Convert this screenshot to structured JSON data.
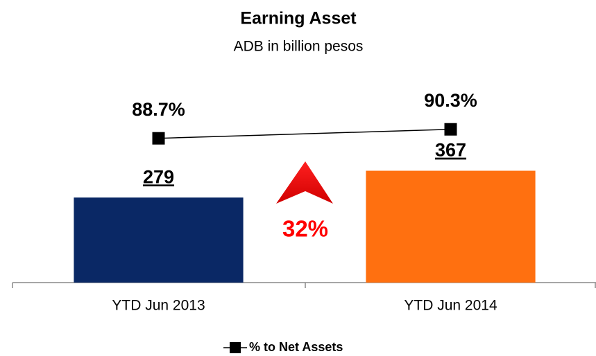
{
  "chart_data": {
    "type": "bar",
    "title": "Earning Asset",
    "subtitle": "ADB in billion pesos",
    "categories": [
      "YTD Jun 2013",
      "YTD Jun 2014"
    ],
    "series": [
      {
        "name": null,
        "type": "bar",
        "colors": [
          "#0a2865",
          "#ff7010"
        ],
        "values": [
          279,
          367
        ]
      },
      {
        "name": "% to Net Assets",
        "type": "line",
        "axis": "y2",
        "color": "#000000",
        "values": [
          88.7,
          90.3
        ],
        "value_labels": [
          "88.7%",
          "90.3%"
        ]
      }
    ],
    "ylim": [
      0,
      700
    ],
    "y2lim": [
      63,
      101
    ],
    "annotations": [
      {
        "text": "32%",
        "color": "#ff0000"
      }
    ],
    "legend": "bottom"
  }
}
